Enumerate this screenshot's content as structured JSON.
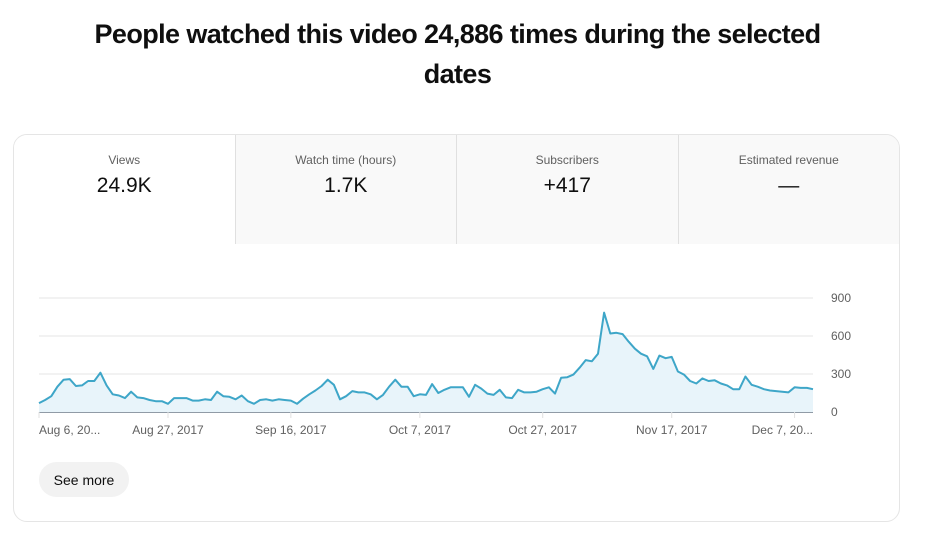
{
  "headline": "People watched this video 24,886 times during the selected dates",
  "tabs": [
    {
      "label": "Views",
      "value": "24.9K",
      "active": true
    },
    {
      "label": "Watch time (hours)",
      "value": "1.7K",
      "active": false
    },
    {
      "label": "Subscribers",
      "value": "+417",
      "active": false
    },
    {
      "label": "Estimated revenue",
      "value": "—",
      "active": false
    }
  ],
  "see_more_label": "See more",
  "colors": {
    "line": "#3ea6c8",
    "fill": "#e8f4fa",
    "grid": "#eeeeee",
    "axis": "#909ba6"
  },
  "chart_data": {
    "type": "area",
    "title": "Views",
    "xlabel": "",
    "ylabel": "",
    "ylim": [
      0,
      900
    ],
    "yticks": [
      0,
      300,
      600,
      900
    ],
    "ytick_labels": [
      "0",
      "300",
      "600",
      "900"
    ],
    "xtick_labels": [
      "Aug 6, 20...",
      "Aug 27, 2017",
      "Sep 16, 2017",
      "Oct 7, 2017",
      "Oct 27, 2017",
      "Nov 17, 2017",
      "Dec 7, 20..."
    ],
    "grid": true,
    "legend": "none",
    "x_start": "Aug 6, 2017",
    "values": [
      70,
      95,
      125,
      200,
      255,
      260,
      205,
      210,
      245,
      245,
      310,
      210,
      140,
      130,
      110,
      160,
      115,
      110,
      95,
      85,
      85,
      65,
      110,
      110,
      110,
      90,
      90,
      100,
      95,
      160,
      125,
      120,
      100,
      130,
      85,
      65,
      95,
      100,
      90,
      100,
      95,
      90,
      65,
      105,
      140,
      170,
      205,
      255,
      215,
      100,
      125,
      165,
      155,
      155,
      140,
      100,
      135,
      200,
      255,
      200,
      200,
      125,
      140,
      135,
      220,
      150,
      175,
      195,
      195,
      195,
      120,
      215,
      185,
      145,
      135,
      175,
      115,
      110,
      175,
      155,
      155,
      160,
      180,
      195,
      145,
      270,
      275,
      295,
      350,
      410,
      400,
      460,
      785,
      620,
      625,
      615,
      555,
      500,
      460,
      440,
      340,
      445,
      425,
      435,
      320,
      295,
      245,
      225,
      265,
      245,
      250,
      225,
      210,
      180,
      180,
      280,
      215,
      200,
      180,
      170,
      165,
      160,
      155,
      195,
      190,
      190,
      180
    ]
  }
}
